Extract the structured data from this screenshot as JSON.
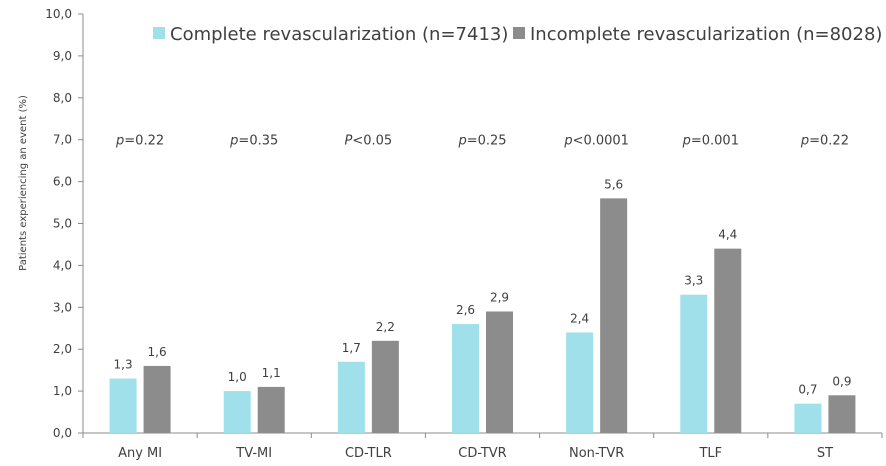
{
  "chart_data": {
    "type": "bar",
    "ylabel": "Patients experiencing an event (%)",
    "ylim": [
      0,
      10
    ],
    "ytick_step": 1,
    "ytick_labels": [
      "0,0",
      "1,0",
      "2,0",
      "3,0",
      "4,0",
      "5,0",
      "6,0",
      "7,0",
      "8,0",
      "9,0",
      "10,0"
    ],
    "categories": [
      "Any MI",
      "TV-MI",
      "CD-TLR",
      "CD-TVR",
      "Non-TVR",
      "TLF",
      "ST"
    ],
    "series": [
      {
        "name": "Complete revascularization (n=7413)",
        "color": "#9fe0ea",
        "values": [
          1.3,
          1.0,
          1.7,
          2.6,
          2.4,
          3.3,
          0.7
        ],
        "labels": [
          "1,3",
          "1,0",
          "1,7",
          "2,6",
          "2,4",
          "3,3",
          "0,7"
        ]
      },
      {
        "name": "Incomplete revascularization (n=8028)",
        "color": "#8c8c8c",
        "values": [
          1.6,
          1.1,
          2.2,
          2.9,
          5.6,
          4.4,
          0.9
        ],
        "labels": [
          "1,6",
          "1,1",
          "2,2",
          "2,9",
          "5,6",
          "4,4",
          "0,9"
        ]
      }
    ],
    "p_values": [
      {
        "letter": "p",
        "rest": "=0.22"
      },
      {
        "letter": "p",
        "rest": "=0.35"
      },
      {
        "letter": "P",
        "rest": "<0.05"
      },
      {
        "letter": "p",
        "rest": "=0.25"
      },
      {
        "letter": "p",
        "rest": "<0.0001"
      },
      {
        "letter": "p",
        "rest": "=0.001"
      },
      {
        "letter": "p",
        "rest": "=0.22"
      }
    ],
    "p_value_level": 7.0,
    "legend_position": "top",
    "grid": false
  }
}
